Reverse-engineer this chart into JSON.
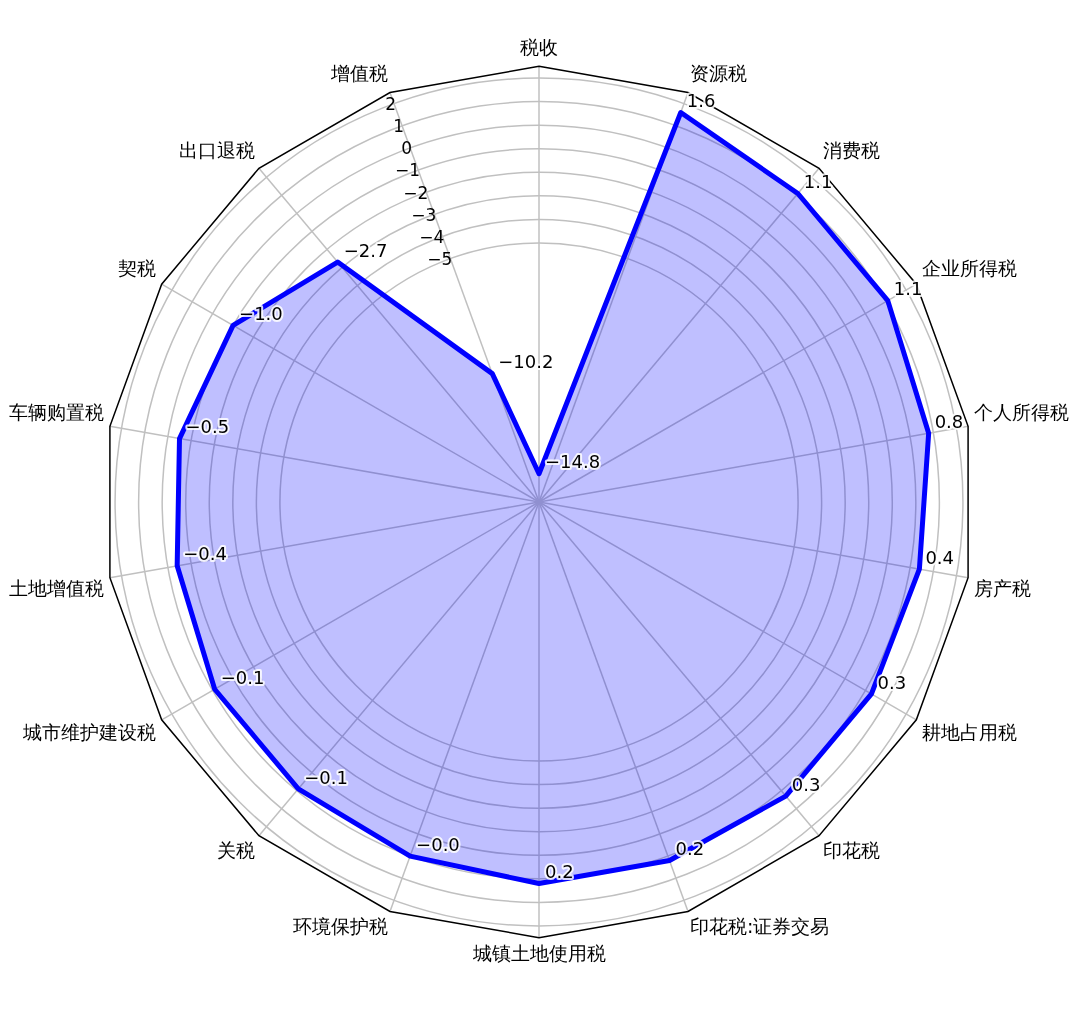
{
  "chart_data": {
    "type": "radar",
    "categories": [
      "税收",
      "资源税",
      "消费税",
      "企业所得税",
      "个人所得税",
      "房产税",
      "耕地占用税",
      "印花税",
      "印花税:证券交易",
      "城镇土地使用税",
      "环境保护税",
      "关税",
      "城市维护建设税",
      "土地增值税",
      "车辆购置税",
      "契税",
      "出口退税",
      "增值税"
    ],
    "series": [
      {
        "color": "#0000ff",
        "values": [
          -14.8,
          1.6,
          1.1,
          1.1,
          0.8,
          0.4,
          0.3,
          0.3,
          0.2,
          0.2,
          0,
          -0.1,
          -0.1,
          -0.4,
          -0.5,
          -1.0,
          -2.7,
          -10.2
        ],
        "value_labels": [
          "−14.8",
          "1.6",
          "1.1",
          "1.1",
          "0.8",
          "0.4",
          "0.3",
          "0.3",
          "0.2",
          "0.2",
          "−0.0",
          "−0.1",
          "−0.1",
          "−0.4",
          "−0.5",
          "−1.0",
          "−2.7",
          "−10.2"
        ]
      }
    ],
    "ylim": [
      -16,
      2.5
    ],
    "yticks": [
      {
        "value": -5,
        "label": "−5"
      },
      {
        "value": -4,
        "label": "−4"
      },
      {
        "value": -3,
        "label": "−3"
      },
      {
        "value": -2,
        "label": "−2"
      },
      {
        "value": -1,
        "label": "−1"
      },
      0,
      1,
      2
    ],
    "grid": true,
    "legend": false,
    "marker": "none",
    "line_style": "solid"
  }
}
